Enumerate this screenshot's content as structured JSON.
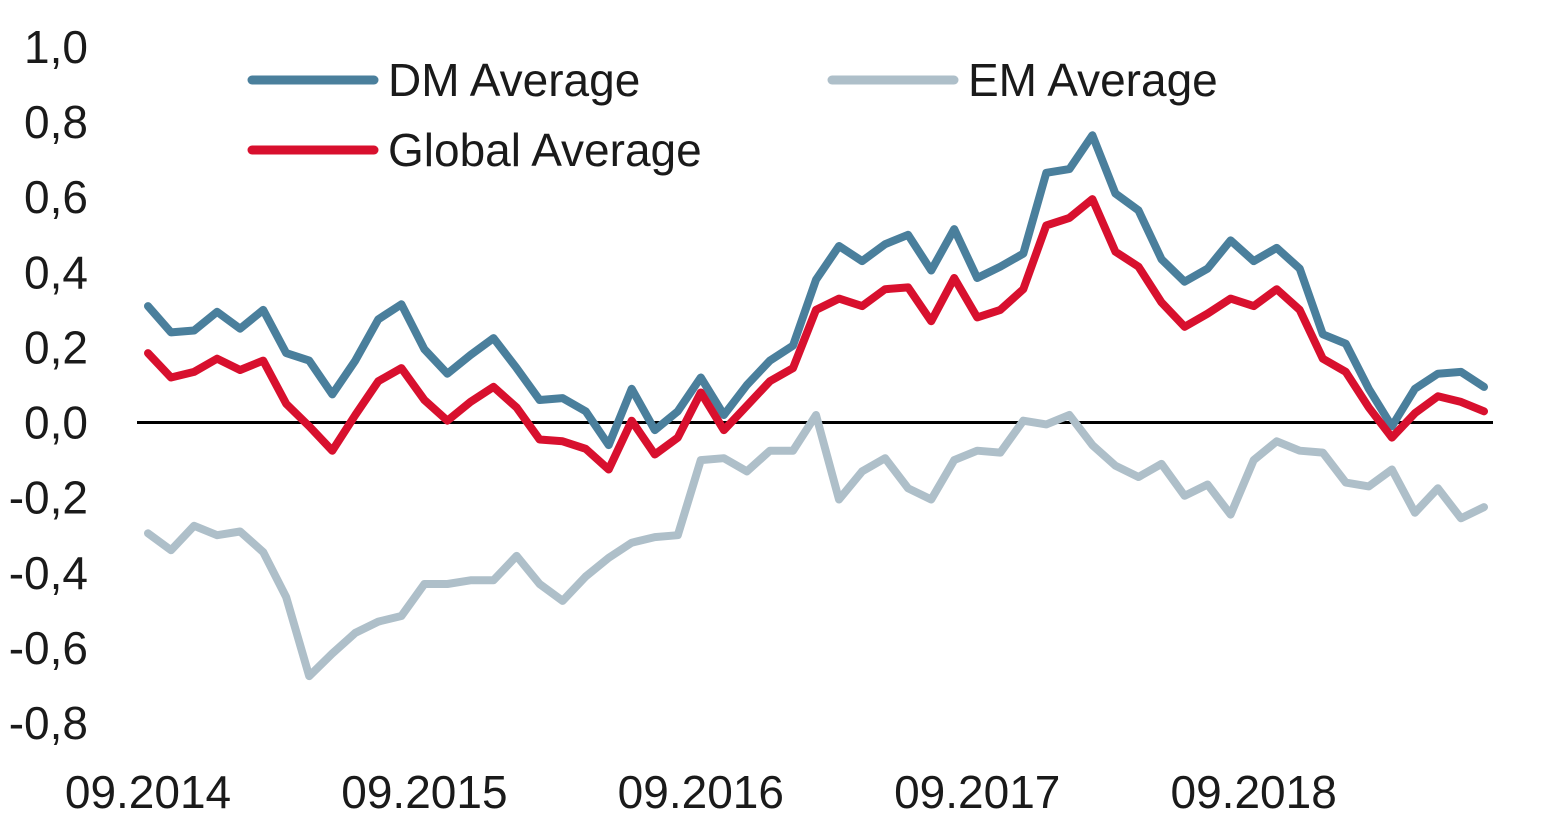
{
  "chart_data": {
    "type": "line",
    "title": "",
    "xlabel": "",
    "ylabel": "",
    "x_tick_labels": [
      "09.2014",
      "09.2015",
      "09.2016",
      "09.2017",
      "09.2018"
    ],
    "y_tick_labels": [
      "1,0",
      "0,8",
      "0,6",
      "0,4",
      "0,2",
      "0,0",
      "-0,2",
      "-0,4",
      "-0,6",
      "-0,8"
    ],
    "y_ticks": [
      1.0,
      0.8,
      0.6,
      0.4,
      0.2,
      0.0,
      -0.2,
      -0.4,
      -0.6,
      -0.8
    ],
    "ylim": [
      -0.8,
      1.0
    ],
    "x_start_month": "09.2014",
    "x_end_month": "06.2019",
    "grid": false,
    "zero_line": true,
    "legend_position": "top",
    "series": [
      {
        "name": "DM Average",
        "color": "#4a7f9c",
        "values": [
          0.31,
          0.24,
          0.245,
          0.295,
          0.25,
          0.3,
          0.185,
          0.165,
          0.075,
          0.165,
          0.275,
          0.315,
          0.195,
          0.13,
          0.18,
          0.225,
          0.145,
          0.06,
          0.065,
          0.03,
          -0.06,
          0.09,
          -0.02,
          0.03,
          0.12,
          0.02,
          0.1,
          0.165,
          0.205,
          0.38,
          0.47,
          0.43,
          0.475,
          0.5,
          0.405,
          0.515,
          0.385,
          0.415,
          0.45,
          0.665,
          0.675,
          0.765,
          0.61,
          0.565,
          0.435,
          0.375,
          0.41,
          0.485,
          0.43,
          0.465,
          0.41,
          0.235,
          0.21,
          0.09,
          -0.01,
          0.09,
          0.13,
          0.135,
          0.095
        ]
      },
      {
        "name": "EM Average",
        "color": "#aebfc9",
        "values": [
          -0.295,
          -0.34,
          -0.275,
          -0.3,
          -0.29,
          -0.345,
          -0.465,
          -0.675,
          -0.615,
          -0.56,
          -0.53,
          -0.515,
          -0.43,
          -0.43,
          -0.42,
          -0.42,
          -0.355,
          -0.43,
          -0.475,
          -0.41,
          -0.36,
          -0.32,
          -0.305,
          -0.3,
          -0.1,
          -0.095,
          -0.13,
          -0.075,
          -0.075,
          0.02,
          -0.205,
          -0.13,
          -0.095,
          -0.175,
          -0.205,
          -0.1,
          -0.075,
          -0.08,
          0.005,
          -0.005,
          0.02,
          -0.06,
          -0.115,
          -0.145,
          -0.11,
          -0.195,
          -0.165,
          -0.245,
          -0.1,
          -0.05,
          -0.075,
          -0.08,
          -0.16,
          -0.17,
          -0.125,
          -0.24,
          -0.175,
          -0.255,
          -0.225
        ]
      },
      {
        "name": "Global Average",
        "color": "#d8102e",
        "values": [
          0.185,
          0.12,
          0.135,
          0.17,
          0.14,
          0.165,
          0.05,
          -0.01,
          -0.075,
          0.02,
          0.11,
          0.145,
          0.06,
          0.005,
          0.055,
          0.095,
          0.04,
          -0.045,
          -0.05,
          -0.07,
          -0.125,
          0.005,
          -0.085,
          -0.04,
          0.08,
          -0.02,
          0.045,
          0.11,
          0.145,
          0.3,
          0.33,
          0.31,
          0.355,
          0.36,
          0.27,
          0.385,
          0.28,
          0.3,
          0.355,
          0.525,
          0.545,
          0.595,
          0.455,
          0.415,
          0.32,
          0.255,
          0.29,
          0.33,
          0.31,
          0.355,
          0.3,
          0.17,
          0.135,
          0.04,
          -0.04,
          0.025,
          0.07,
          0.055,
          0.03
        ]
      }
    ]
  }
}
